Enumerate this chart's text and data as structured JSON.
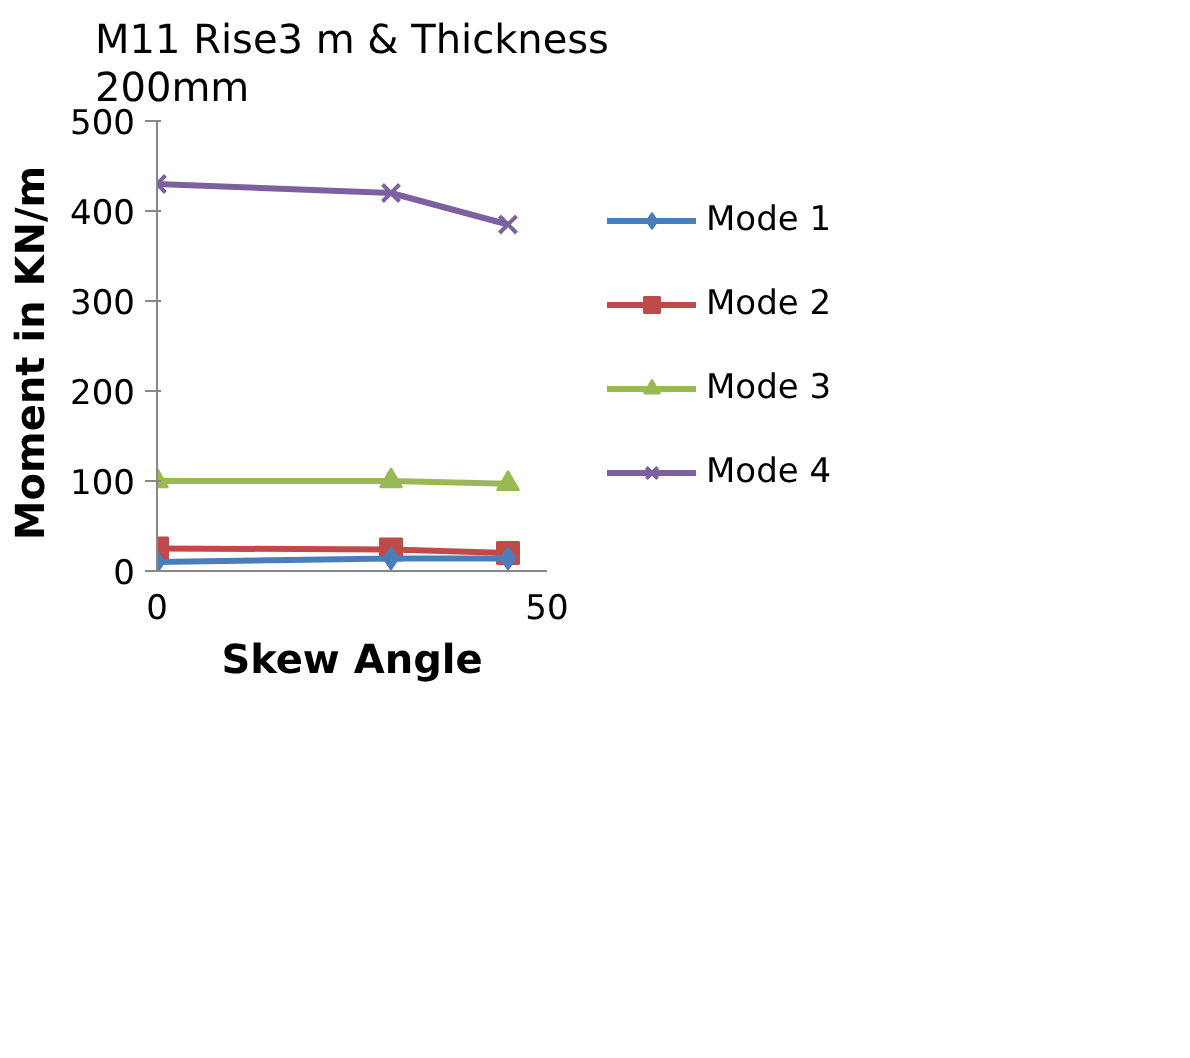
{
  "chart_data": {
    "type": "line",
    "title": "M11 Rise3 m & Thickness 200mm",
    "xlabel": "Skew Angle",
    "ylabel": "Moment  in KN/m",
    "x": [
      0,
      30,
      45
    ],
    "xlim": [
      0,
      50
    ],
    "xticks": [
      0,
      50
    ],
    "ylim": [
      0,
      500
    ],
    "yticks": [
      0,
      100,
      200,
      300,
      400,
      500
    ],
    "grid": false,
    "legend": "right",
    "series": [
      {
        "name": "Mode 1",
        "color": "#4a7ebb",
        "marker": "diamond",
        "values": [
          10,
          14,
          14
        ]
      },
      {
        "name": "Mode 2",
        "color": "#be4b48",
        "marker": "square",
        "values": [
          25,
          24,
          20
        ]
      },
      {
        "name": "Mode 3",
        "color": "#98b954",
        "marker": "triangle",
        "values": [
          100,
          100,
          97
        ]
      },
      {
        "name": "Mode 4",
        "color": "#7d60a0",
        "marker": "x",
        "values": [
          430,
          420,
          385
        ]
      }
    ]
  }
}
